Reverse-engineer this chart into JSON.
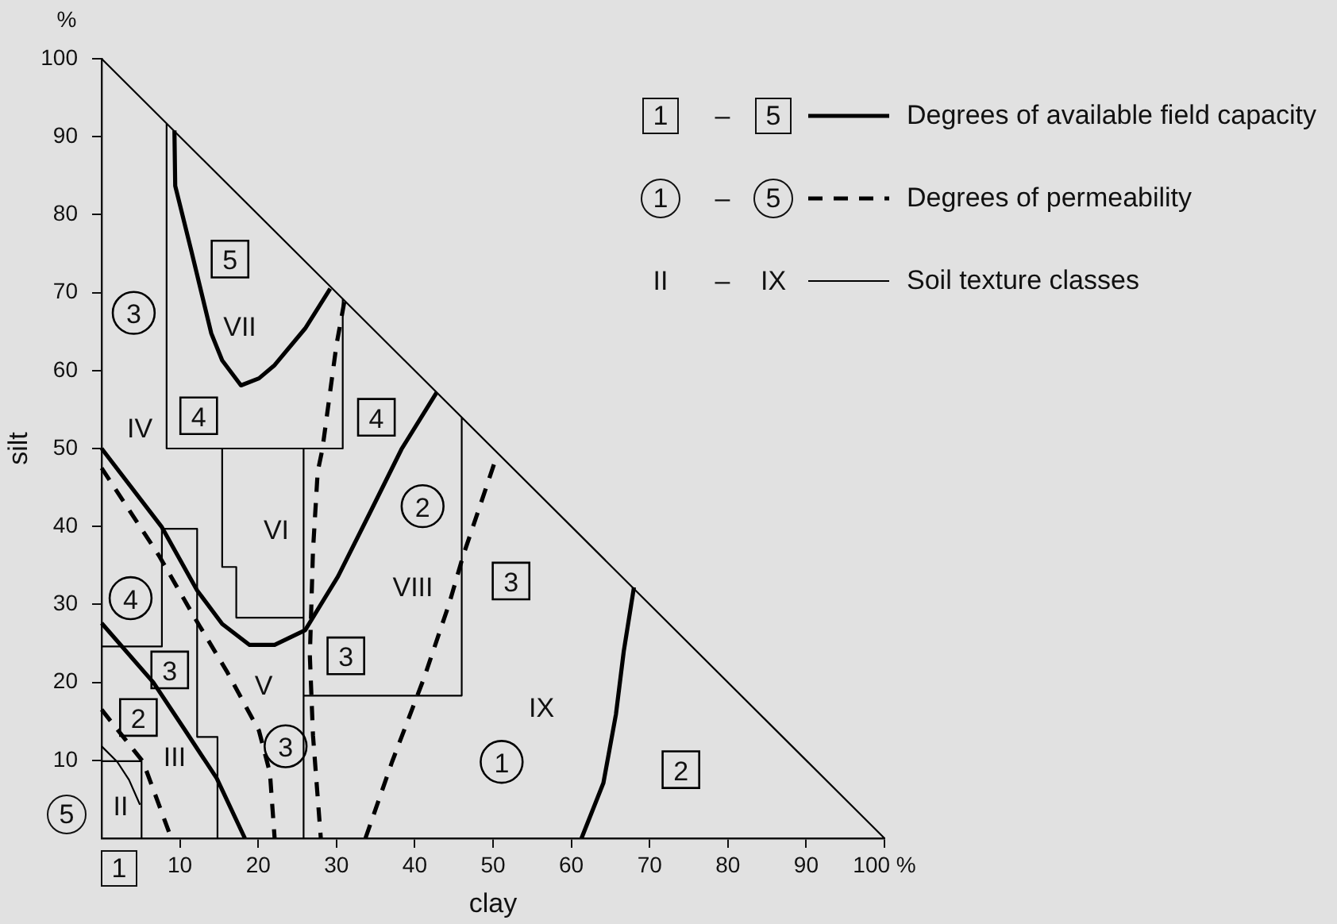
{
  "chart_data": {
    "type": "line",
    "xlabel": "clay",
    "ylabel": "silt",
    "xlim": [
      0,
      100
    ],
    "ylim": [
      0,
      100
    ],
    "xticks": [
      10,
      20,
      30,
      40,
      50,
      60,
      70,
      80,
      90,
      {
        "value": 100,
        "label": "100 %"
      }
    ],
    "yticks": [
      10,
      20,
      30,
      40,
      50,
      60,
      70,
      80,
      90,
      100
    ],
    "legend": "top right",
    "annotations": [
      "%",
      "1",
      "5",
      "II",
      "III",
      "IV",
      "V",
      "VI",
      "VII",
      "VIII",
      "IX",
      "1 – 5",
      "1 – 5",
      "II – IX",
      {
        "text": "5",
        "x": 16.4,
        "y": 74.3
      },
      {
        "text": "4",
        "x": 12.4,
        "y": 54.2
      },
      {
        "text": "4",
        "x": 35.1,
        "y": 54
      },
      {
        "text": "3",
        "x": 8.7,
        "y": 21.6
      },
      {
        "text": "2",
        "x": 4.7,
        "y": 15.5
      },
      {
        "text": "3",
        "x": 31.2,
        "y": 23.4
      },
      {
        "text": "3",
        "x": 52.3,
        "y": 33
      },
      {
        "text": "2",
        "x": 74,
        "y": 8.8
      },
      {
        "text": "3",
        "x": 4.1,
        "y": 67.4
      },
      {
        "text": "4",
        "x": 3.7,
        "y": 30.8
      },
      {
        "text": "3",
        "x": 23.5,
        "y": 11.8
      },
      {
        "text": "2",
        "x": 41,
        "y": 42.6
      },
      {
        "text": "1",
        "x": 51.1,
        "y": 9.8
      }
    ],
    "series": [
      {
        "name": "Degrees of available field capacity",
        "color": "#000000",
        "x": [
          0,
          7.7,
          12.2,
          15.4,
          18.9,
          22.1,
          26,
          30.2,
          34.3,
          38.3,
          42.8,
          null,
          0,
          6.6,
          10.7,
          14.7,
          18.3,
          null,
          9.3,
          9.4,
          11.4,
          14,
          15.4,
          17.8,
          20.1,
          22.1,
          26,
          29.2,
          null,
          61.3,
          64.1,
          65.7,
          66.7,
          68
        ],
        "values": [
          50,
          39.9,
          31.8,
          27.5,
          24.8,
          24.8,
          26.7,
          33.6,
          41.8,
          49.9,
          57.2,
          null,
          27.6,
          20,
          13.8,
          7.7,
          0,
          null,
          90.8,
          83.7,
          75.6,
          64.8,
          61.3,
          58.1,
          59,
          60.7,
          65.4,
          70.5,
          null,
          0,
          7.1,
          15.9,
          24,
          32.2
        ]
      },
      {
        "name": "Degrees of permeability",
        "color": "#000000",
        "line_style": "dashed",
        "x": [
          0,
          7.3,
          12,
          16,
          20.1,
          21.5,
          22.1,
          null,
          0,
          5.3,
          8.9,
          null,
          31,
          30,
          28.2,
          27.6,
          27,
          26.6,
          27,
          28,
          null,
          33.7,
          37.1,
          41.2,
          44.4,
          46.2,
          50.5
        ],
        "values": [
          47.5,
          36.3,
          28.1,
          21.4,
          13.8,
          8.4,
          0,
          null,
          16.5,
          9.8,
          0,
          null,
          68.8,
          63.3,
          49.9,
          47,
          36.9,
          23.4,
          13.2,
          0,
          null,
          0,
          9.8,
          20.6,
          30.1,
          36.3,
          49.1
        ]
      },
      {
        "name": "Soil texture classes",
        "color": "#000000",
        "x": [
          0,
          100,
          null,
          8.3,
          8.3,
          30.8,
          30.8,
          null,
          15.4,
          15.4,
          17.2,
          17.2,
          25.8,
          null,
          25.8,
          25.8,
          null,
          25.8,
          46,
          46,
          null,
          0,
          7.7,
          7.7,
          12.2,
          12.2,
          14.8,
          14.8,
          null,
          0,
          5.1,
          5.1,
          null,
          0,
          2,
          3.5,
          4.9
        ],
        "values": [
          100,
          0,
          null,
          91.7,
          50,
          50,
          69.2,
          null,
          50,
          34.8,
          34.8,
          28.3,
          28.3,
          null,
          50,
          0,
          null,
          18.3,
          18.3,
          54,
          null,
          24.6,
          24.6,
          39.7,
          39.7,
          13,
          13,
          0,
          null,
          9.9,
          9.9,
          0,
          null,
          11.8,
          9.8,
          7.5,
          4.3
        ]
      },
      {
        "type": "scatter",
        "marker": "square",
        "color": "#000000",
        "x": [
          16.4,
          12.4,
          35.1,
          8.7,
          4.7,
          31.2,
          52.3,
          74
        ],
        "values": [
          74.3,
          54.2,
          54,
          21.6,
          15.5,
          23.4,
          33,
          8.8
        ]
      },
      {
        "type": "scatter",
        "marker": "circle",
        "color": "#000000",
        "x": [
          4.1,
          3.7,
          23.5,
          41,
          51.1
        ],
        "values": [
          67.4,
          30.8,
          11.8,
          42.6,
          9.8
        ]
      }
    ]
  }
}
